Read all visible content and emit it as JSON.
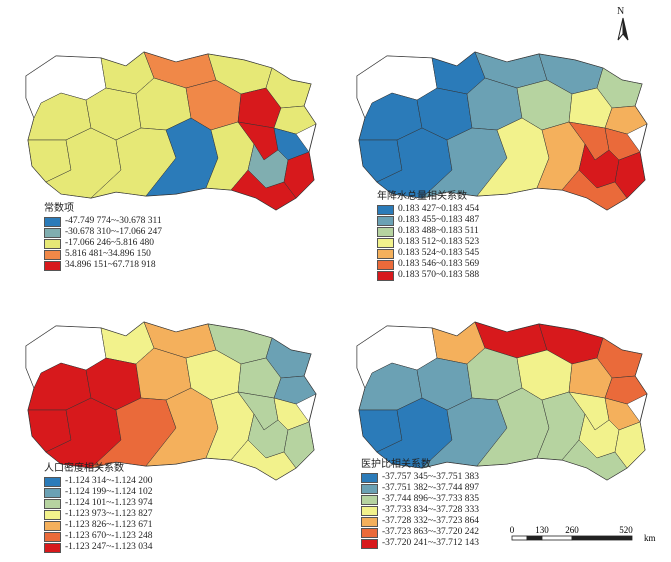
{
  "north_label": "N",
  "scale": {
    "ticks": [
      "0",
      "130",
      "260",
      "520"
    ],
    "unit": "km"
  },
  "outline_color": "#333333",
  "panels": [
    {
      "legend_title": "常数项",
      "classes": [
        {
          "label": "-47.749 774~-30.678 311",
          "color": "#2b7bb9"
        },
        {
          "label": "-30.678 310~-17.066 247",
          "color": "#80aeb0"
        },
        {
          "label": "-17.066 246~5.816 480",
          "color": "#e6e876"
        },
        {
          "label": "5.816 481~34.896 150",
          "color": "#f08848"
        },
        {
          "label": "34.896 151~67.718 918",
          "color": "#d7191c"
        }
      ]
    },
    {
      "legend_title": "年降水总量相关系数",
      "classes": [
        {
          "label": "0.183 427~0.183 454",
          "color": "#2b7bb9"
        },
        {
          "label": "0.183 455~0.183 487",
          "color": "#6ba1b4"
        },
        {
          "label": "0.183 488~0.183 511",
          "color": "#b6d3a0"
        },
        {
          "label": "0.183 512~0.183 523",
          "color": "#f2f28c"
        },
        {
          "label": "0.183 524~0.183 545",
          "color": "#f4b05c"
        },
        {
          "label": "0.183 546~0.183 569",
          "color": "#ea6a3a"
        },
        {
          "label": "0.183 570~0.183 588",
          "color": "#d7191c"
        }
      ]
    },
    {
      "legend_title": "人口密度相关系数",
      "classes": [
        {
          "label": "-1.124 314~-1.124 200",
          "color": "#2b7bb9"
        },
        {
          "label": "-1.124 199~-1.124 102",
          "color": "#6ba1b4"
        },
        {
          "label": "-1.124 101~-1.123 974",
          "color": "#b6d3a0"
        },
        {
          "label": "-1.123 973~-1.123 827",
          "color": "#f2f28c"
        },
        {
          "label": "-1.123 826~-1.123 671",
          "color": "#f4b05c"
        },
        {
          "label": "-1.123 670~-1.123 248",
          "color": "#ea6a3a"
        },
        {
          "label": "-1.123 247~-1.123 034",
          "color": "#d7191c"
        }
      ]
    },
    {
      "legend_title": "医护比相关系数",
      "classes": [
        {
          "label": "-37.757 345~-37.751 383",
          "color": "#2b7bb9"
        },
        {
          "label": "-37.751 382~-37.744 897",
          "color": "#6ba1b4"
        },
        {
          "label": "-37.744 896~-37.733 835",
          "color": "#b6d3a0"
        },
        {
          "label": "-37.733 834~-37.728 333",
          "color": "#f2f28c"
        },
        {
          "label": "-37.728 332~-37.723 864",
          "color": "#f4b05c"
        },
        {
          "label": "-37.723 863~-37.720 242",
          "color": "#ea6a3a"
        },
        {
          "label": "-37.720 241~-37.712 143",
          "color": "#d7191c"
        }
      ]
    }
  ]
}
